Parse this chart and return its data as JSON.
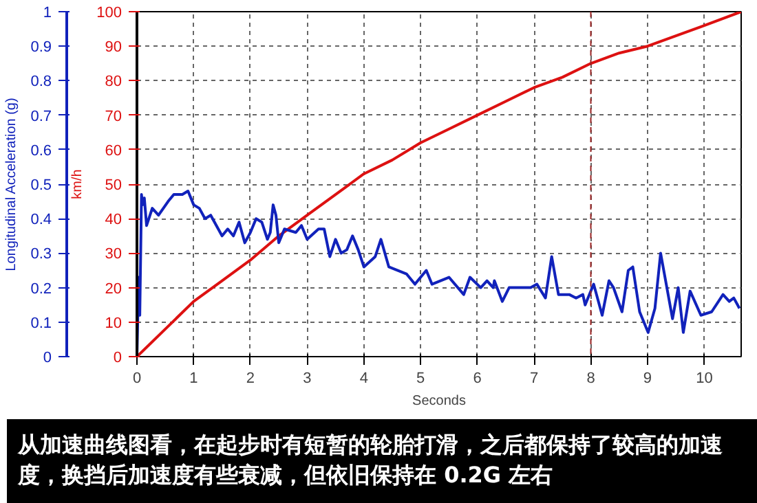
{
  "chart_data": {
    "type": "line",
    "xlabel": "Seconds",
    "ylabel": "km/h",
    "y2label": "Longitudinal Acceleration (g)",
    "xlim": [
      0,
      10.65
    ],
    "xticks": [
      0,
      1,
      2,
      3,
      4,
      5,
      6,
      7,
      8,
      9,
      10
    ],
    "ylim": [
      0,
      100
    ],
    "yticks": [
      0,
      10,
      20,
      30,
      40,
      50,
      60,
      70,
      80,
      90,
      100
    ],
    "y2lim": [
      0,
      1
    ],
    "y2ticks": [
      0,
      0.1,
      0.2,
      0.3,
      0.4,
      0.5,
      0.6,
      0.7,
      0.8,
      0.9,
      1
    ],
    "grid": true,
    "line_style": "solid",
    "marker": "none",
    "series": [
      {
        "color": "#dd1111",
        "x": [
          0,
          0.5,
          1,
          1.5,
          2,
          2.5,
          3,
          3.5,
          4,
          4.5,
          5,
          5.5,
          6,
          6.5,
          7,
          7.5,
          8,
          8.5,
          9,
          9.5,
          10,
          10.65
        ],
        "values": [
          0,
          8,
          16,
          22,
          28,
          35,
          41,
          47,
          53,
          57,
          62,
          66,
          70,
          74,
          78,
          81,
          85,
          88,
          90,
          93,
          96,
          100
        ]
      },
      {
        "color": "#1122bb",
        "axis": "y2",
        "x": [
          0,
          0.03,
          0.05,
          0.07,
          0.08,
          0.1,
          0.13,
          0.17,
          0.27,
          0.38,
          0.55,
          0.65,
          0.8,
          0.9,
          1.0,
          1.1,
          1.2,
          1.3,
          1.5,
          1.6,
          1.7,
          1.8,
          1.9,
          2.0,
          2.1,
          2.2,
          2.3,
          2.35,
          2.4,
          2.45,
          2.5,
          2.6,
          2.8,
          2.9,
          3.0,
          3.2,
          3.3,
          3.4,
          3.5,
          3.6,
          3.7,
          3.8,
          3.9,
          4.0,
          4.2,
          4.3,
          4.44,
          4.75,
          4.9,
          5.1,
          5.2,
          5.5,
          5.76,
          5.87,
          6.06,
          6.17,
          6.28,
          6.3,
          6.44,
          6.56,
          6.83,
          6.94,
          7.05,
          7.2,
          7.31,
          7.43,
          7.62,
          7.74,
          7.86,
          7.9,
          8.05,
          8.2,
          8.32,
          8.4,
          8.55,
          8.66,
          8.74,
          8.86,
          9.01,
          9.13,
          9.23,
          9.44,
          9.54,
          9.63,
          9.75,
          9.94,
          10.13,
          10.33,
          10.44,
          10.52,
          10.62
        ],
        "values": [
          0,
          0.23,
          0.12,
          0.35,
          0.47,
          0.44,
          0.46,
          0.38,
          0.43,
          0.41,
          0.45,
          0.47,
          0.47,
          0.48,
          0.44,
          0.43,
          0.4,
          0.41,
          0.35,
          0.37,
          0.35,
          0.39,
          0.33,
          0.36,
          0.4,
          0.39,
          0.34,
          0.36,
          0.44,
          0.41,
          0.33,
          0.37,
          0.36,
          0.38,
          0.34,
          0.37,
          0.37,
          0.29,
          0.34,
          0.3,
          0.31,
          0.35,
          0.31,
          0.26,
          0.29,
          0.34,
          0.26,
          0.24,
          0.21,
          0.25,
          0.21,
          0.23,
          0.18,
          0.23,
          0.2,
          0.22,
          0.2,
          0.22,
          0.16,
          0.2,
          0.2,
          0.2,
          0.21,
          0.17,
          0.29,
          0.18,
          0.18,
          0.17,
          0.18,
          0.15,
          0.21,
          0.12,
          0.22,
          0.2,
          0.13,
          0.25,
          0.26,
          0.13,
          0.07,
          0.14,
          0.3,
          0.11,
          0.2,
          0.07,
          0.19,
          0.12,
          0.13,
          0.18,
          0.16,
          0.17,
          0.14
        ]
      }
    ],
    "ref_lines": [
      {
        "axis": "x",
        "value": 8,
        "color": "#992222",
        "line_style": "dashed"
      }
    ],
    "annotations": [
      "从加速曲线图看，在起步时有短暂的轮胎打滑，之后都保持了较高的加速度，换挡后加速度有些衰减，但依旧保持在 0.2G 左右"
    ]
  }
}
